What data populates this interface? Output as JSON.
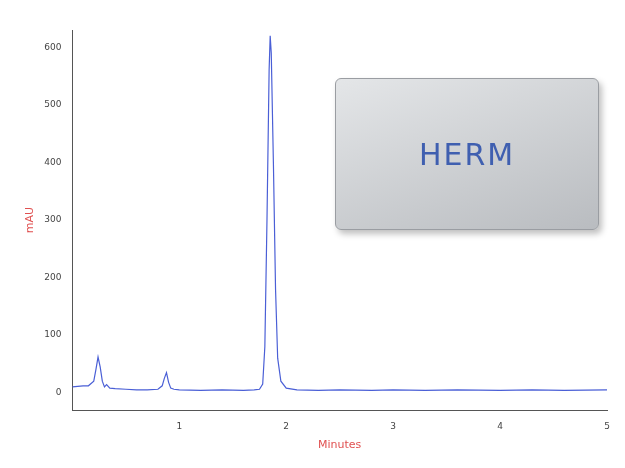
{
  "chart_data": {
    "type": "line",
    "x_label": "Minutes",
    "y_label": "mAU",
    "annotations": [
      "HERM"
    ],
    "color": "#4a5fd6",
    "x": [
      0,
      0.05,
      0.1,
      0.15,
      0.2,
      0.22,
      0.24,
      0.26,
      0.28,
      0.3,
      0.32,
      0.35,
      0.4,
      0.5,
      0.6,
      0.7,
      0.8,
      0.84,
      0.86,
      0.88,
      0.9,
      0.92,
      0.95,
      1.0,
      1.2,
      1.4,
      1.6,
      1.7,
      1.75,
      1.78,
      1.8,
      1.82,
      1.84,
      1.85,
      1.86,
      1.88,
      1.9,
      1.92,
      1.95,
      2.0,
      2.1,
      2.3,
      2.5,
      2.8,
      3.0,
      3.3,
      3.6,
      4.0,
      4.3,
      4.6,
      5.0
    ],
    "values": [
      10,
      11,
      12,
      12,
      20,
      40,
      62,
      45,
      20,
      10,
      14,
      8,
      7,
      6,
      5,
      5,
      6,
      12,
      25,
      35,
      18,
      8,
      6,
      5,
      4,
      5,
      4,
      5,
      6,
      15,
      80,
      300,
      560,
      620,
      590,
      400,
      180,
      60,
      20,
      8,
      5,
      4,
      5,
      4,
      5,
      4,
      5,
      4,
      5,
      4,
      5
    ],
    "xlim": [
      0,
      5
    ],
    "xticks": [
      1,
      2,
      3,
      4,
      5
    ],
    "ylim": [
      -30,
      630
    ],
    "yticks": [
      0,
      100,
      200,
      300,
      400,
      500,
      600
    ],
    "grid": false
  }
}
